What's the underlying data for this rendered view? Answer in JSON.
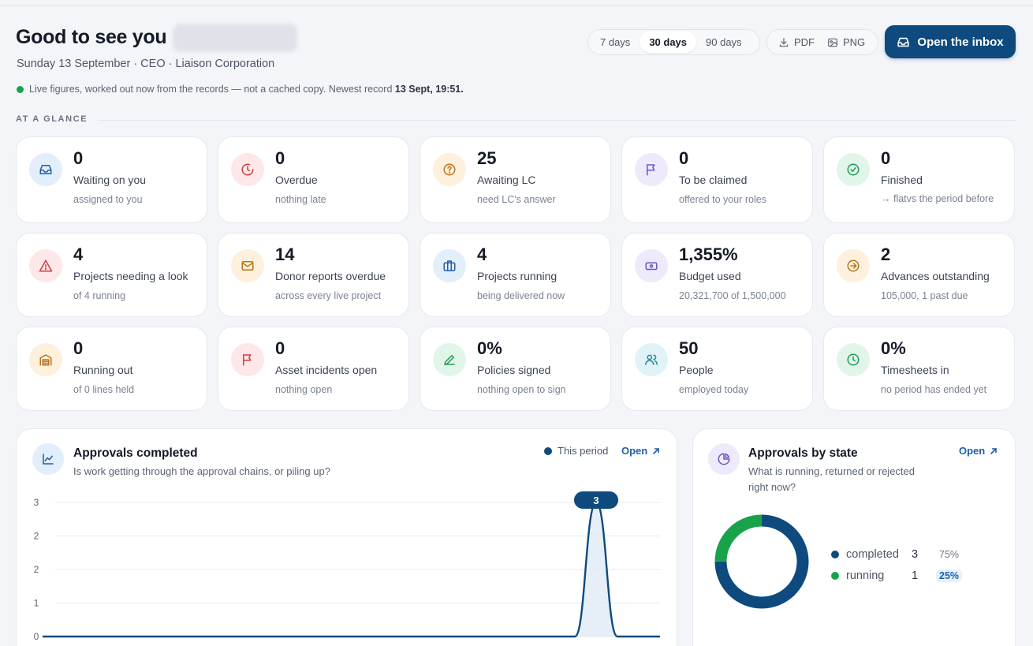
{
  "header": {
    "greeting": "Good to see you",
    "subtitle": "Sunday 13 September · CEO · Liaison Corporation",
    "live_text": "Live figures, worked out now from the records — not a cached copy. Newest record ",
    "live_time": "13 Sept, 19:51.",
    "ranges": [
      "7 days",
      "30 days",
      "90 days"
    ],
    "active_range": "30 days",
    "pdf_label": "PDF",
    "png_label": "PNG",
    "inbox_label": "Open the inbox"
  },
  "glance": {
    "label": "AT A GLANCE",
    "cards": [
      {
        "value": "0",
        "label": "Waiting on you",
        "sub": "assigned to you",
        "icon": "inbox-icon",
        "color": "blue"
      },
      {
        "value": "0",
        "label": "Overdue",
        "sub": "nothing late",
        "icon": "clock-alert-icon",
        "color": "red"
      },
      {
        "value": "25",
        "label": "Awaiting LC",
        "sub": "need LC's answer",
        "icon": "question-icon",
        "color": "amber"
      },
      {
        "value": "0",
        "label": "To be claimed",
        "sub": "offered to your roles",
        "icon": "flag-icon",
        "color": "purple"
      },
      {
        "value": "0",
        "label": "Finished",
        "sub_tag": "→ flat",
        "sub": "vs the period before",
        "icon": "check-circle-icon",
        "color": "green"
      },
      {
        "value": "4",
        "label": "Projects needing a look",
        "sub": "of 4 running",
        "icon": "warning-icon",
        "color": "red"
      },
      {
        "value": "14",
        "label": "Donor reports overdue",
        "sub": "across every live project",
        "icon": "mail-icon",
        "color": "amber"
      },
      {
        "value": "4",
        "label": "Projects running",
        "sub": "being delivered now",
        "icon": "briefcase-icon",
        "color": "blue"
      },
      {
        "value": "1,355%",
        "label": "Budget used",
        "sub": "20,321,700 of 1,500,000",
        "icon": "banknote-icon",
        "color": "purple"
      },
      {
        "value": "2",
        "label": "Advances outstanding",
        "sub": "105,000, 1 past due",
        "icon": "arrow-circle-icon",
        "color": "amber"
      },
      {
        "value": "0",
        "label": "Running out",
        "sub": "of 0 lines held",
        "icon": "warehouse-icon",
        "color": "amber"
      },
      {
        "value": "0",
        "label": "Asset incidents open",
        "sub": "nothing open",
        "icon": "flag-icon",
        "color": "red"
      },
      {
        "value": "0%",
        "label": "Policies signed",
        "sub": "nothing open to sign",
        "icon": "pen-icon",
        "color": "green"
      },
      {
        "value": "50",
        "label": "People",
        "sub": "employed today",
        "icon": "users-icon",
        "color": "teal"
      },
      {
        "value": "0%",
        "label": "Timesheets in",
        "sub": "no period has ended yet",
        "icon": "clock-icon",
        "color": "green"
      }
    ]
  },
  "approvals_chart": {
    "title": "Approvals completed",
    "subtitle": "Is work getting through the approval chains, or piling up?",
    "legend": "This period",
    "open_label": "Open",
    "peak_label": "3"
  },
  "chart_data": {
    "type": "area",
    "series": [
      {
        "name": "This period",
        "values": [
          0,
          0,
          0,
          0,
          0,
          0,
          0,
          0,
          0,
          0,
          0,
          0,
          0,
          0,
          0,
          0,
          0,
          0,
          0,
          0,
          0,
          0,
          0,
          0,
          0,
          0,
          3,
          0,
          0,
          0
        ]
      }
    ],
    "y_ticks": [
      "3",
      "2",
      "2",
      "1",
      "0"
    ],
    "ylim": [
      0,
      3
    ],
    "grid": true,
    "legend_position": "top-right",
    "colors": {
      "line": "#0e4a7e",
      "fill": "#dbe8f5"
    }
  },
  "approvals_state": {
    "title": "Approvals by state",
    "subtitle_line1": "What is running, returned or rejected",
    "subtitle_line2": "right now?",
    "open_label": "Open",
    "items": [
      {
        "name": "completed",
        "count": "3",
        "pct": "75%",
        "value": 3,
        "color": "#0e4a7e"
      },
      {
        "name": "running",
        "count": "1",
        "pct": "25%",
        "value": 1,
        "color": "#18a34a"
      }
    ]
  }
}
